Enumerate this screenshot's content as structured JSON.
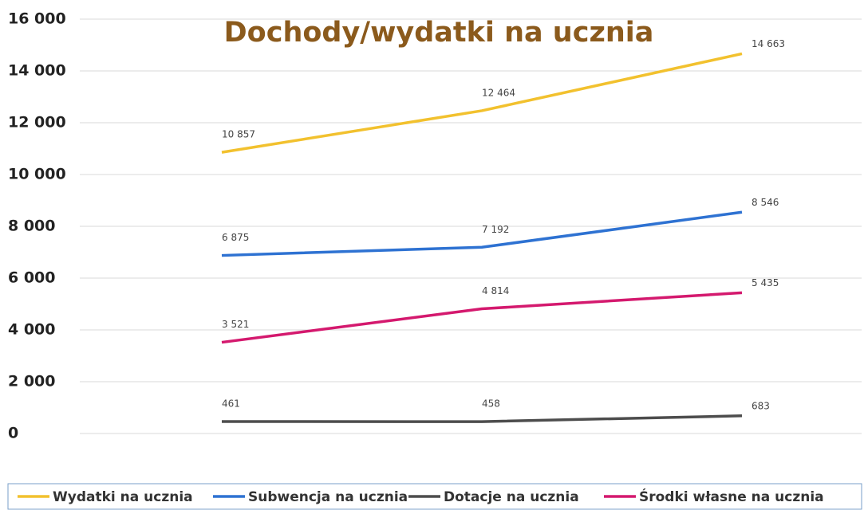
{
  "chart_data": {
    "type": "line",
    "title": "Dochody/wydatki na ucznia",
    "categories": [
      null,
      null,
      null
    ],
    "series": [
      {
        "name": "Wydatki na ucznia",
        "color": "#f2c12e",
        "values": [
          10857,
          12464,
          14663
        ],
        "value_labels": [
          "10 857",
          "12 464",
          "14 663"
        ]
      },
      {
        "name": "Subwencja na ucznia",
        "color": "#2e72d2",
        "values": [
          6875,
          7192,
          8546
        ],
        "value_labels": [
          "6 875",
          "7 192",
          "8 546"
        ]
      },
      {
        "name": "Dotacje na ucznia",
        "color": "#4d4d4d",
        "values": [
          461,
          458,
          683
        ]
      },
      {
        "name": "Środki własne na ucznia",
        "color": "#d4196e",
        "values": [
          3521,
          4814,
          5435
        ],
        "value_labels": [
          "3 521",
          "4 814",
          "5 435"
        ]
      }
    ],
    "ylim": [
      0,
      16000
    ],
    "yticks": [
      0,
      {
        "value": 2000,
        "label": "2 000"
      },
      {
        "value": 4000,
        "label": "4 000"
      },
      {
        "value": 6000,
        "label": "6 000"
      },
      {
        "value": 8000,
        "label": "8 000"
      },
      {
        "value": 10000,
        "label": "10 000"
      },
      {
        "value": 12000,
        "label": "12 000"
      },
      {
        "value": 14000,
        "label": "14 000"
      },
      {
        "value": 16000,
        "label": "16 000"
      }
    ],
    "grid": true,
    "legend": "bottom"
  }
}
